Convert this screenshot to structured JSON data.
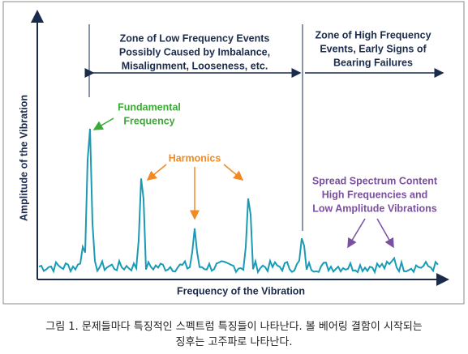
{
  "diagram": {
    "low_zone": [
      "Zone of Low Frequency Events",
      "Possibly Caused by Imbalance,",
      "Misalignment, Looseness, etc."
    ],
    "high_zone": [
      "Zone of High Frequency",
      "Events, Early Signs of",
      "Bearing Failures"
    ],
    "fundamental": [
      "Fundamental",
      "Frequency"
    ],
    "harmonics": "Harmonics",
    "spread": [
      "Spread Spectrum Content",
      "High Frequencies and",
      "Low Amplitude Vibrations"
    ],
    "y_label": "Amplitude of the Vibration",
    "x_label": "Frequency of the Vibration"
  },
  "caption": [
    "그림 1. 문제들마다 특징적인 스펙트럼 특징들이 나타난다. 볼 베어링 결함이 시작되는",
    "징후는 고주파로 나타난다."
  ]
}
